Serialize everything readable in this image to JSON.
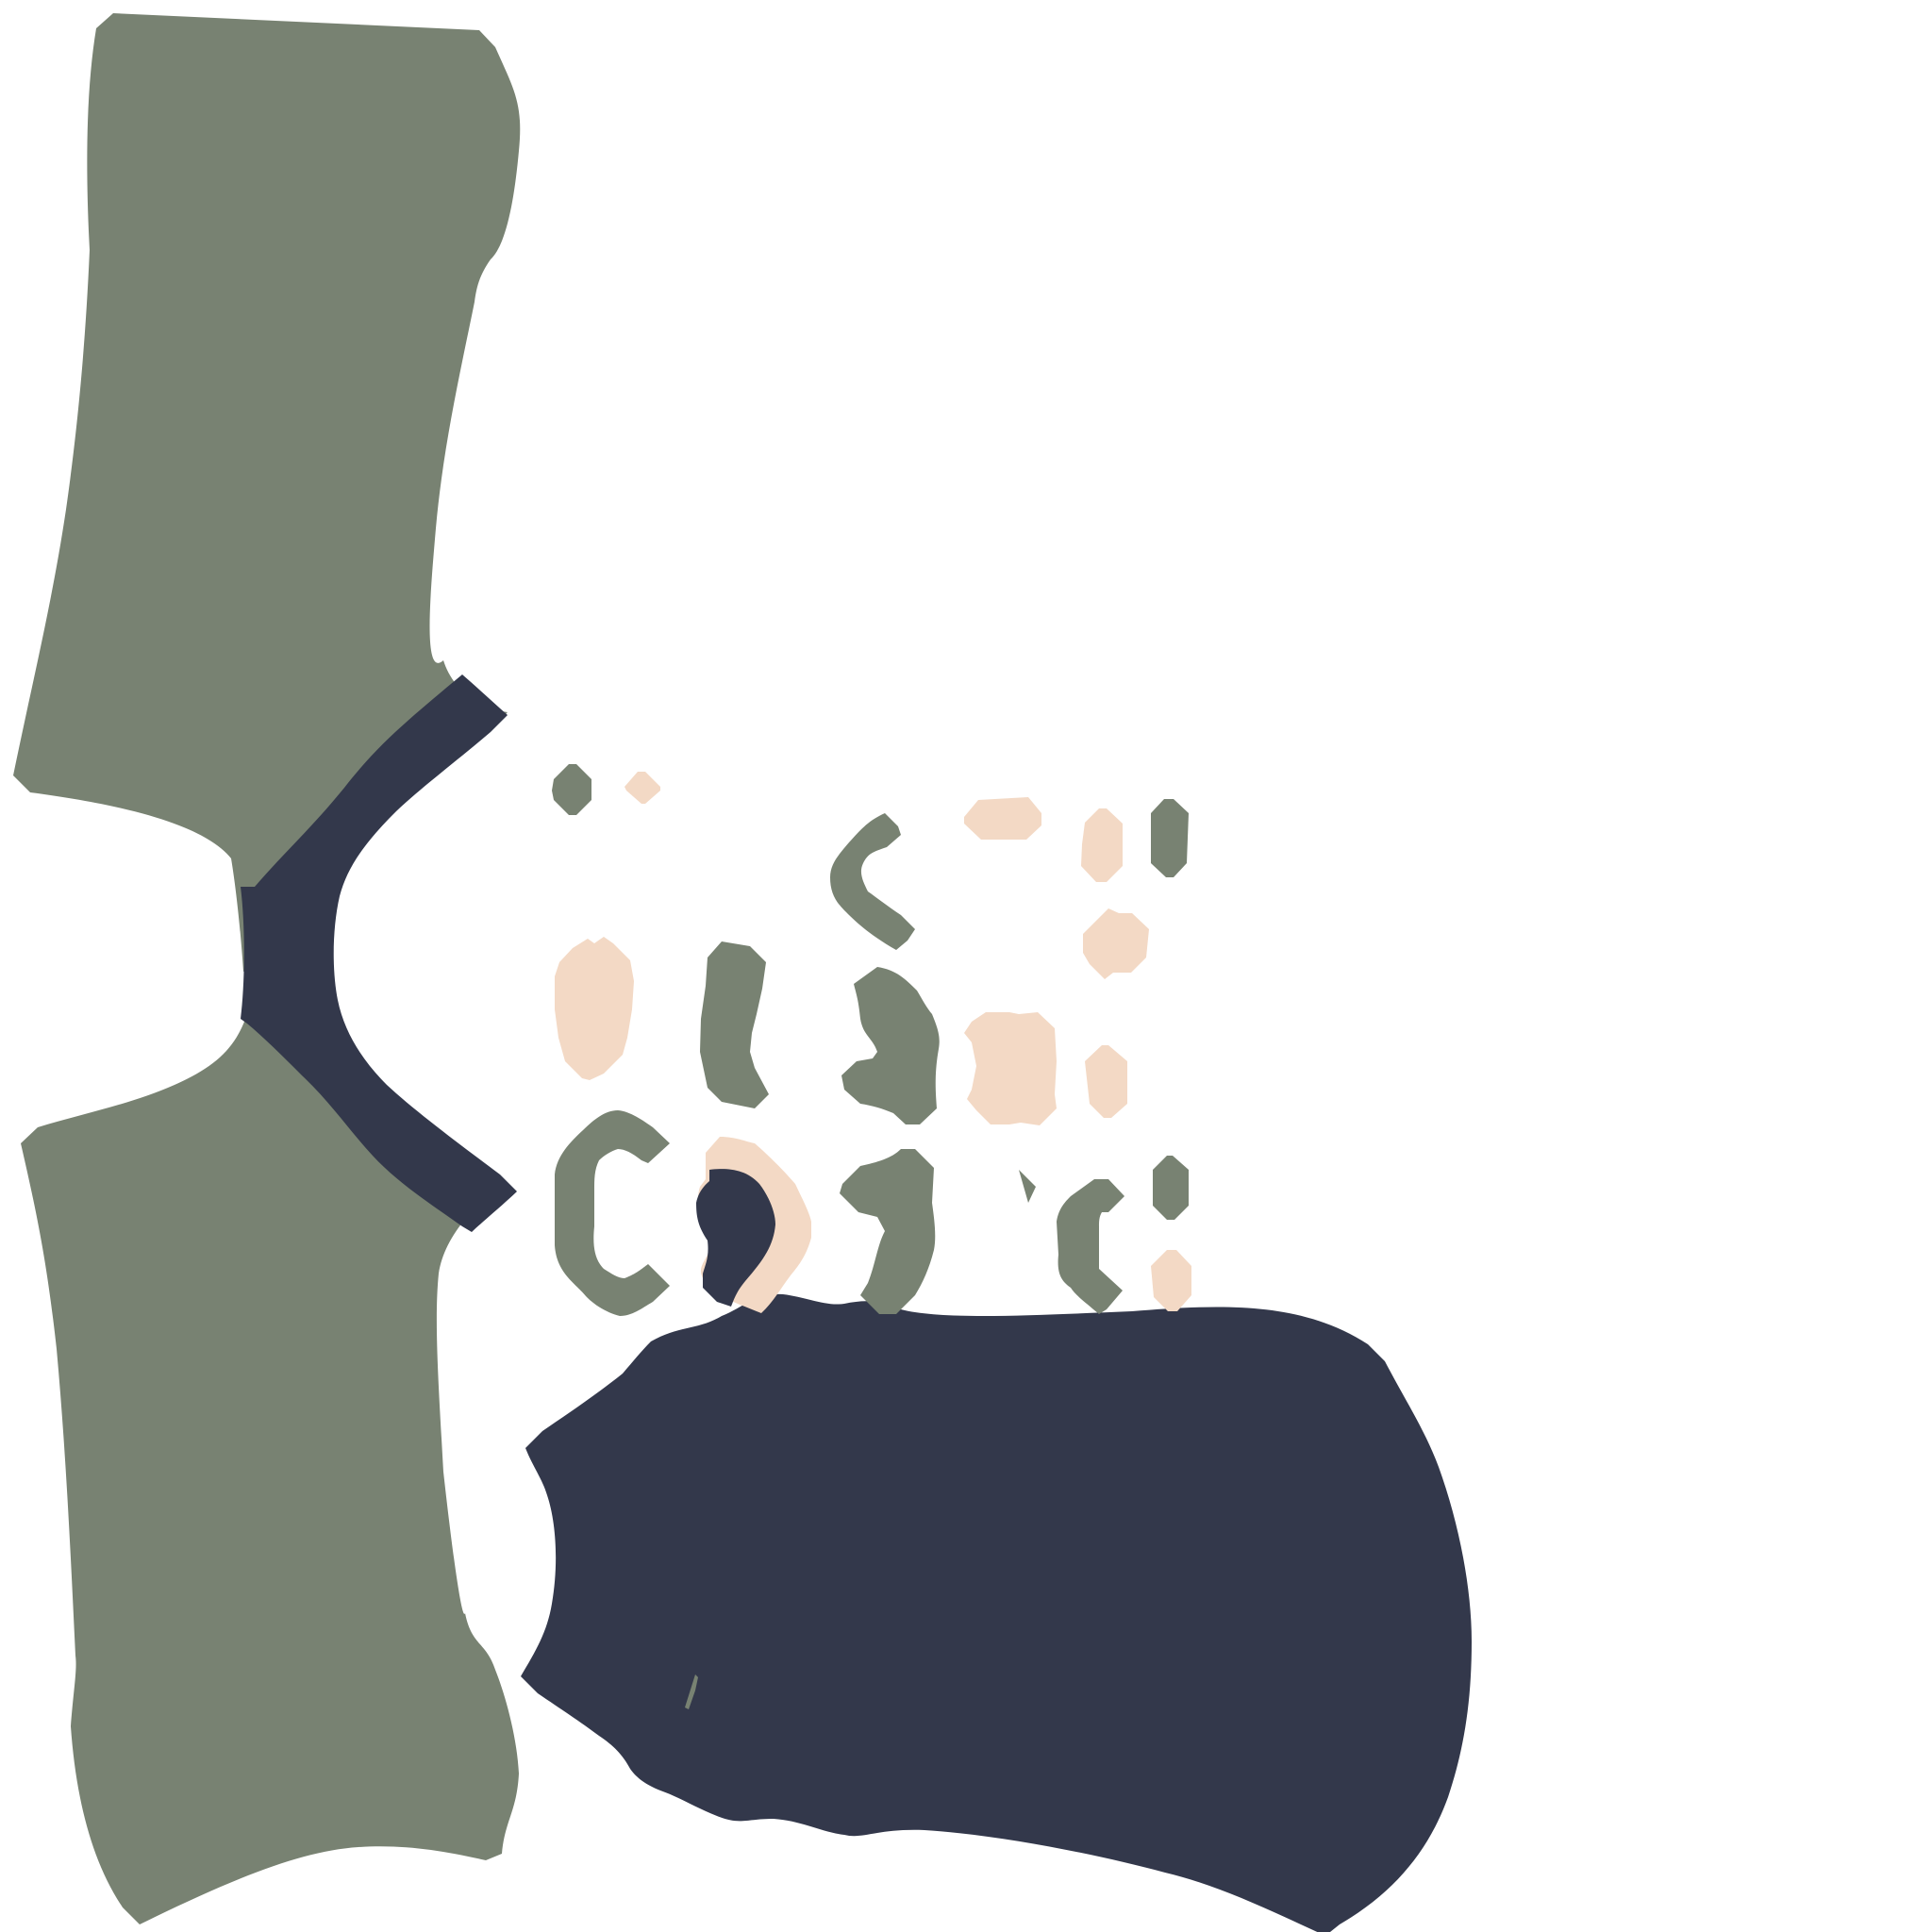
{
  "texture": {
    "background_color": "#ffffff",
    "palette": {
      "sage": "#788272",
      "navy": "#33384b",
      "peach": "#f3d9c5"
    }
  }
}
